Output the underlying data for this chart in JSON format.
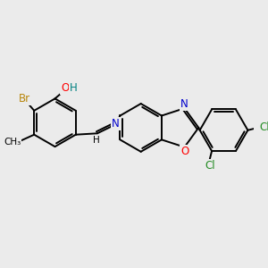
{
  "bg_color": "#ebebeb",
  "bond_color": "#000000",
  "bond_width": 1.4,
  "atom_colors": {
    "Br": "#b8860b",
    "O": "#ff0000",
    "H": "#008080",
    "N": "#0000cc",
    "Cl": "#228b22"
  },
  "scale": 1.0
}
